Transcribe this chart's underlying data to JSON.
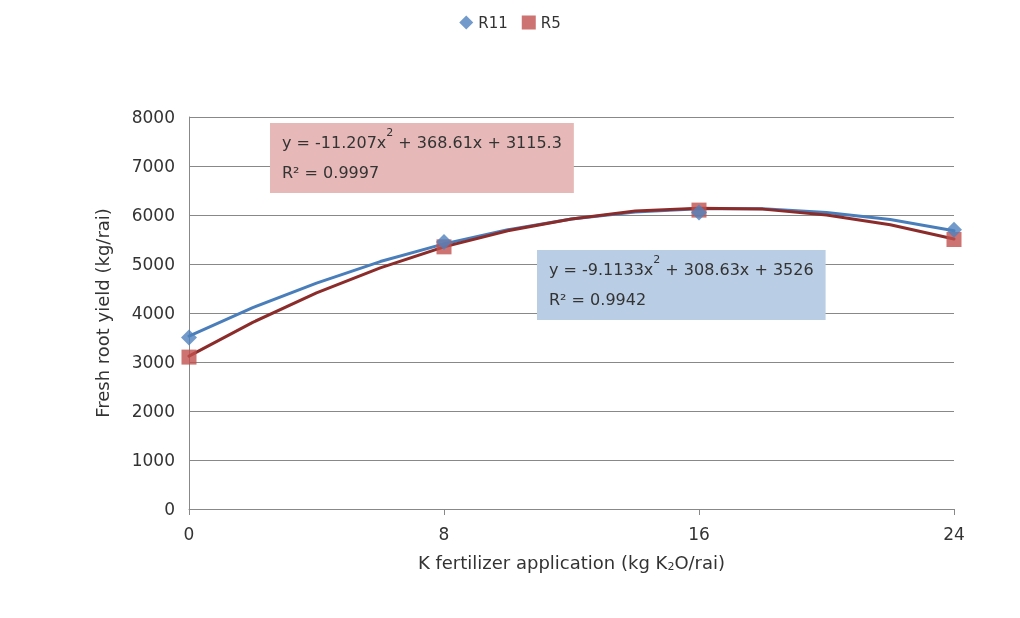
{
  "chart_data": {
    "type": "scatter",
    "xlabel": "K fertilizer application (kg K$_{2}$O/rai)",
    "ylabel": "Fresh root yield (kg/rai)",
    "x": [
      0,
      8,
      16,
      24
    ],
    "xlim": [
      0,
      24
    ],
    "xticks": [
      0,
      8,
      16,
      24
    ],
    "ylim": [
      0,
      8000
    ],
    "yticks": [
      0,
      1000,
      2000,
      3000,
      4000,
      5000,
      6000,
      7000,
      8000
    ],
    "grid": "y",
    "legend": "top",
    "series": [
      {
        "name": "R11",
        "color": "#4f81bd",
        "marker": "diamond",
        "values": [
          3500,
          5450,
          6050,
          5700
        ]
      },
      {
        "name": "R5",
        "color": "#c0504d",
        "marker": "square",
        "values": [
          3100,
          5350,
          6100,
          5500
        ]
      },
      {
        "type": "line",
        "color": "#4a7ebb",
        "marker": "none",
        "x": [
          0,
          2,
          4,
          6,
          8,
          10,
          12,
          14,
          16,
          18,
          20,
          22,
          24
        ],
        "values": [
          3530,
          4110,
          4610,
          5050,
          5410,
          5700,
          5920,
          6060,
          6130,
          6130,
          6050,
          5910,
          5680
        ]
      },
      {
        "type": "line",
        "color": "#8b2c2b",
        "marker": "none",
        "x": [
          0,
          2,
          4,
          6,
          8,
          10,
          12,
          14,
          16,
          18,
          20,
          22,
          24
        ],
        "values": [
          3120,
          3810,
          4410,
          4920,
          5350,
          5680,
          5920,
          6080,
          6140,
          6120,
          6000,
          5800,
          5510
        ]
      }
    ],
    "annotations": [
      "y = -11.207x$^{2}$ + 368.61x + 3115.3\nR² = 0.9997",
      "y = -9.1133x$^{2}$ + 308.63x + 3526\nR² = 0.9942"
    ]
  }
}
